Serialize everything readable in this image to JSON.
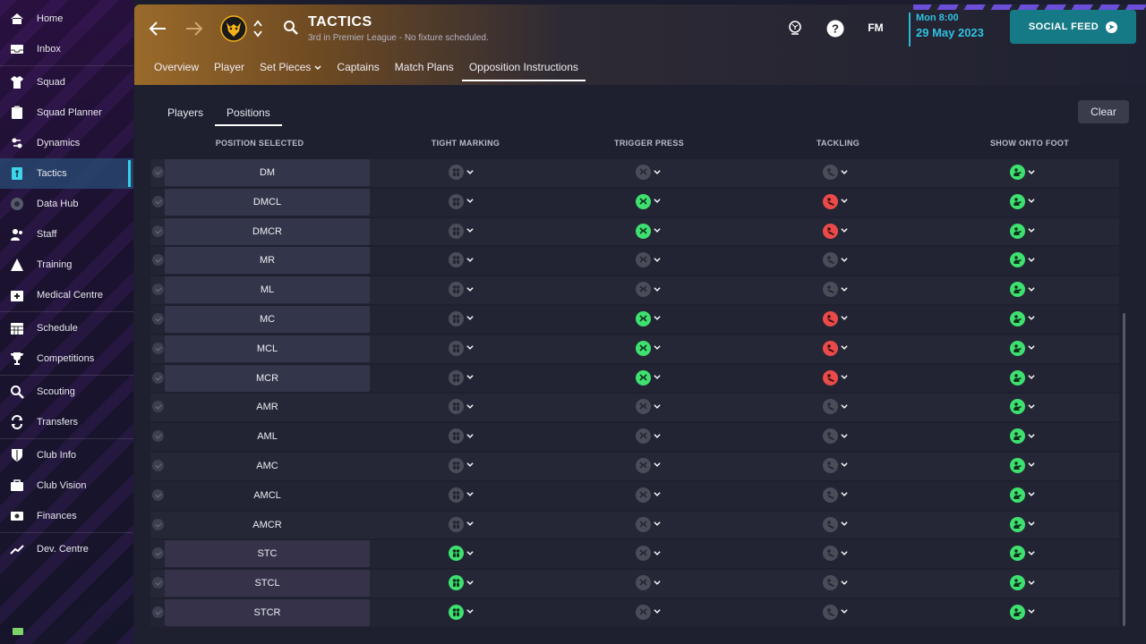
{
  "sidebar": {
    "items": [
      {
        "label": "Home",
        "icon": "home-icon"
      },
      {
        "label": "Inbox",
        "icon": "inbox-icon"
      },
      {
        "label": "Squad",
        "icon": "shirt-icon"
      },
      {
        "label": "Squad Planner",
        "icon": "clipboard-icon"
      },
      {
        "label": "Dynamics",
        "icon": "dynamics-icon"
      },
      {
        "label": "Tactics",
        "icon": "tactics-icon",
        "active": true
      },
      {
        "label": "Data Hub",
        "icon": "data-hub-icon"
      },
      {
        "label": "Staff",
        "icon": "staff-icon"
      },
      {
        "label": "Training",
        "icon": "training-icon"
      },
      {
        "label": "Medical Centre",
        "icon": "medical-icon"
      },
      {
        "label": "Schedule",
        "icon": "calendar-icon"
      },
      {
        "label": "Competitions",
        "icon": "trophy-icon"
      },
      {
        "label": "Scouting",
        "icon": "search-icon"
      },
      {
        "label": "Transfers",
        "icon": "transfers-icon"
      },
      {
        "label": "Club Info",
        "icon": "shield-icon"
      },
      {
        "label": "Club Vision",
        "icon": "briefcase-icon"
      },
      {
        "label": "Finances",
        "icon": "money-icon"
      },
      {
        "label": "Dev. Centre",
        "icon": "trend-icon"
      }
    ]
  },
  "header": {
    "title": "TACTICS",
    "subtitle": "3rd in Premier League - No fixture scheduled.",
    "fm_label": "FM",
    "date_line1": "Mon 8:00",
    "date_line2": "29 May 2023",
    "social_feed_label": "SOCIAL FEED",
    "tabs": [
      {
        "label": "Overview"
      },
      {
        "label": "Player"
      },
      {
        "label": "Set Pieces",
        "has_dropdown": true
      },
      {
        "label": "Captains"
      },
      {
        "label": "Match Plans"
      },
      {
        "label": "Opposition Instructions",
        "active": true
      }
    ]
  },
  "content": {
    "subtabs": [
      {
        "label": "Players"
      },
      {
        "label": "Positions",
        "active": true
      }
    ],
    "clear_label": "Clear",
    "columns": {
      "position": "POSITION SELECTED",
      "tight_marking": "TIGHT MARKING",
      "trigger_press": "TRIGGER PRESS",
      "tackling": "TACKLING",
      "show_onto_foot": "SHOW ONTO FOOT"
    },
    "rows": [
      {
        "position": "DM",
        "style": "box",
        "tight_marking": "off",
        "trigger_press": "off",
        "tackling": "off",
        "show_onto_foot": "on"
      },
      {
        "position": "DMCL",
        "style": "box",
        "tight_marking": "off",
        "trigger_press": "on",
        "tackling": "ease",
        "show_onto_foot": "on"
      },
      {
        "position": "DMCR",
        "style": "box",
        "tight_marking": "off",
        "trigger_press": "on",
        "tackling": "ease",
        "show_onto_foot": "on"
      },
      {
        "position": "MR",
        "style": "box",
        "tight_marking": "off",
        "trigger_press": "off",
        "tackling": "off",
        "show_onto_foot": "on"
      },
      {
        "position": "ML",
        "style": "box",
        "tight_marking": "off",
        "trigger_press": "off",
        "tackling": "off",
        "show_onto_foot": "on"
      },
      {
        "position": "MC",
        "style": "box",
        "tight_marking": "off",
        "trigger_press": "on",
        "tackling": "ease",
        "show_onto_foot": "on"
      },
      {
        "position": "MCL",
        "style": "box",
        "tight_marking": "off",
        "trigger_press": "on",
        "tackling": "ease",
        "show_onto_foot": "on"
      },
      {
        "position": "MCR",
        "style": "box",
        "tight_marking": "off",
        "trigger_press": "on",
        "tackling": "ease",
        "show_onto_foot": "on"
      },
      {
        "position": "AMR",
        "style": "plain",
        "tight_marking": "off",
        "trigger_press": "off",
        "tackling": "off",
        "show_onto_foot": "on"
      },
      {
        "position": "AML",
        "style": "plain",
        "tight_marking": "off",
        "trigger_press": "off",
        "tackling": "off",
        "show_onto_foot": "on"
      },
      {
        "position": "AMC",
        "style": "plain",
        "tight_marking": "off",
        "trigger_press": "off",
        "tackling": "off",
        "show_onto_foot": "on"
      },
      {
        "position": "AMCL",
        "style": "plain",
        "tight_marking": "off",
        "trigger_press": "off",
        "tackling": "off",
        "show_onto_foot": "on"
      },
      {
        "position": "AMCR",
        "style": "plain",
        "tight_marking": "off",
        "trigger_press": "off",
        "tackling": "off",
        "show_onto_foot": "on"
      },
      {
        "position": "STC",
        "style": "st",
        "tight_marking": "on",
        "trigger_press": "off",
        "tackling": "off",
        "show_onto_foot": "on"
      },
      {
        "position": "STCL",
        "style": "st",
        "tight_marking": "on",
        "trigger_press": "off",
        "tackling": "off",
        "show_onto_foot": "on"
      },
      {
        "position": "STCR",
        "style": "st",
        "tight_marking": "on",
        "trigger_press": "off",
        "tackling": "off",
        "show_onto_foot": "on"
      }
    ]
  },
  "colors": {
    "accent_cyan": "#2fc2e0",
    "on_green": "#3ee070",
    "ease_red": "#ea4a4a",
    "off_grey": "#4a4c5a",
    "social_teal": "#167a86"
  }
}
